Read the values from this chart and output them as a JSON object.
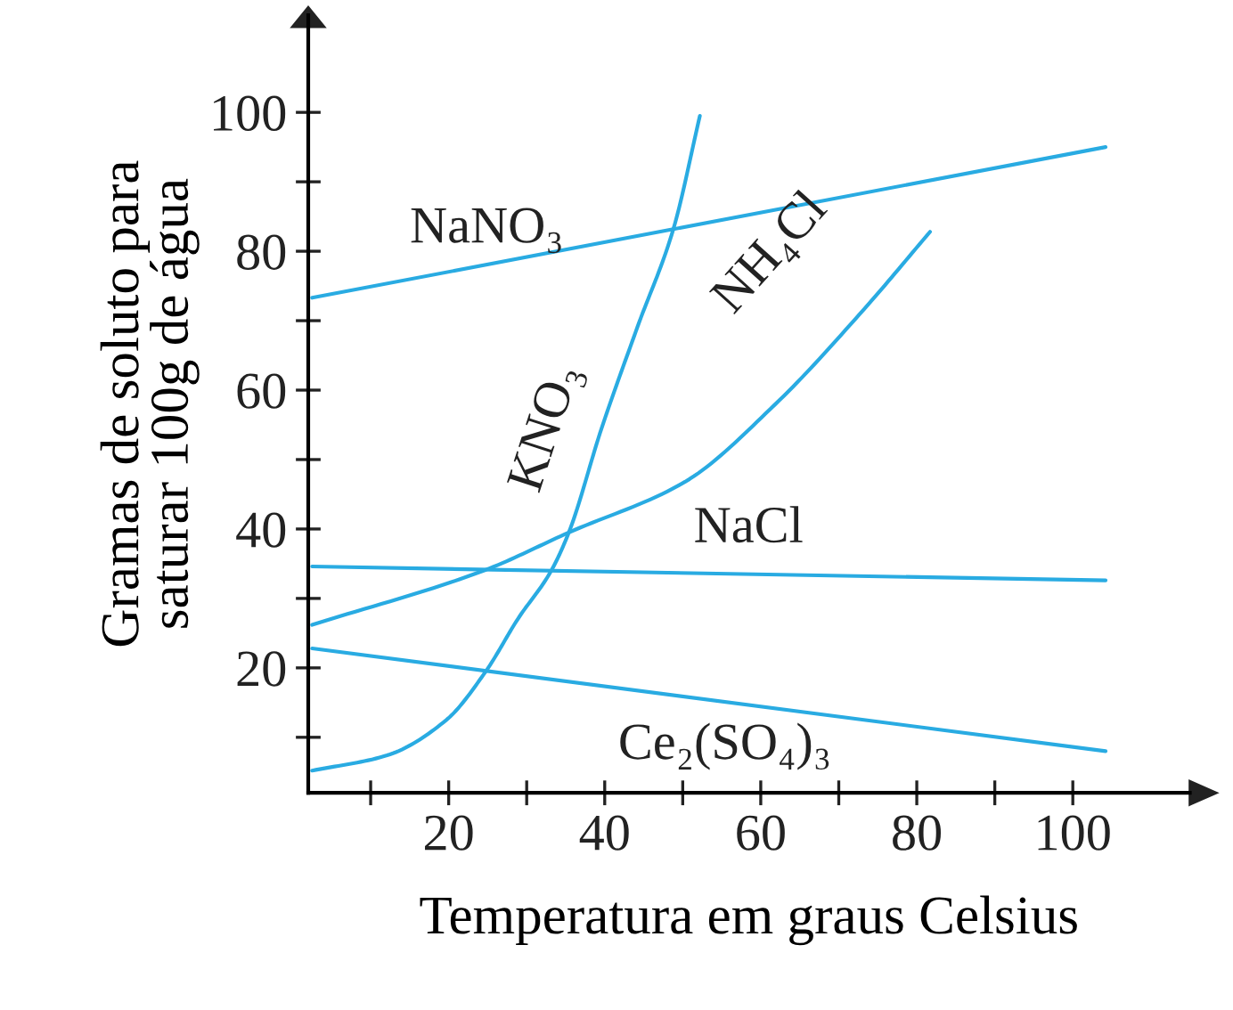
{
  "chart_data": {
    "type": "line",
    "xlabel": "Temperatura em graus Celsius",
    "ylabel": "Gramas de soluto para\nsaturar 100g de água",
    "xlim": [
      2,
      115
    ],
    "ylim": [
      2,
      114
    ],
    "xticks": [
      {
        "value": 10,
        "label": null
      },
      20,
      {
        "value": 30,
        "label": null
      },
      40,
      {
        "value": 50,
        "label": null
      },
      60,
      {
        "value": 70,
        "label": null
      },
      80,
      {
        "value": 90,
        "label": null
      },
      100
    ],
    "yticks": [
      {
        "value": 10,
        "label": null
      },
      20,
      {
        "value": 30,
        "label": null
      },
      40,
      {
        "value": 50,
        "label": null
      },
      60,
      {
        "value": 70,
        "label": null
      },
      80,
      {
        "value": 90,
        "label": null
      },
      100
    ],
    "grid": false,
    "marker": "none",
    "line_style": "solid",
    "series": [
      {
        "name": "NaNO₃",
        "color": "#29abe2",
        "x": [
          2.5,
          104.2
        ],
        "values": [
          73.3,
          95
        ]
      },
      {
        "name": "KNO₃",
        "color": "#29abe2",
        "x": [
          2.5,
          12.1,
          19.7,
          24.7,
          28.9,
          33.1,
          35.4,
          39.6,
          44.2,
          48.8,
          52.2
        ],
        "values": [
          5.2,
          7.4,
          12.5,
          19.4,
          27.1,
          33.9,
          39.5,
          54.5,
          69.1,
          83.2,
          99.5
        ]
      },
      {
        "name": "NH₄Cl",
        "color": "#29abe2",
        "x": [
          2.5,
          24.7,
          35.4,
          50.3,
          61.8,
          73.2,
          81.7
        ],
        "values": [
          26.2,
          34.1,
          39.5,
          46.8,
          57.9,
          71.6,
          82.8
        ]
      },
      {
        "name": "NaCl",
        "color": "#29abe2",
        "x": [
          2.5,
          104.2
        ],
        "values": [
          34.6,
          32.6
        ]
      },
      {
        "name": "Ce₂(SO₄)₃",
        "color": "#29abe2",
        "x": [
          2.5,
          104.2
        ],
        "values": [
          22.8,
          8.0
        ]
      }
    ]
  }
}
